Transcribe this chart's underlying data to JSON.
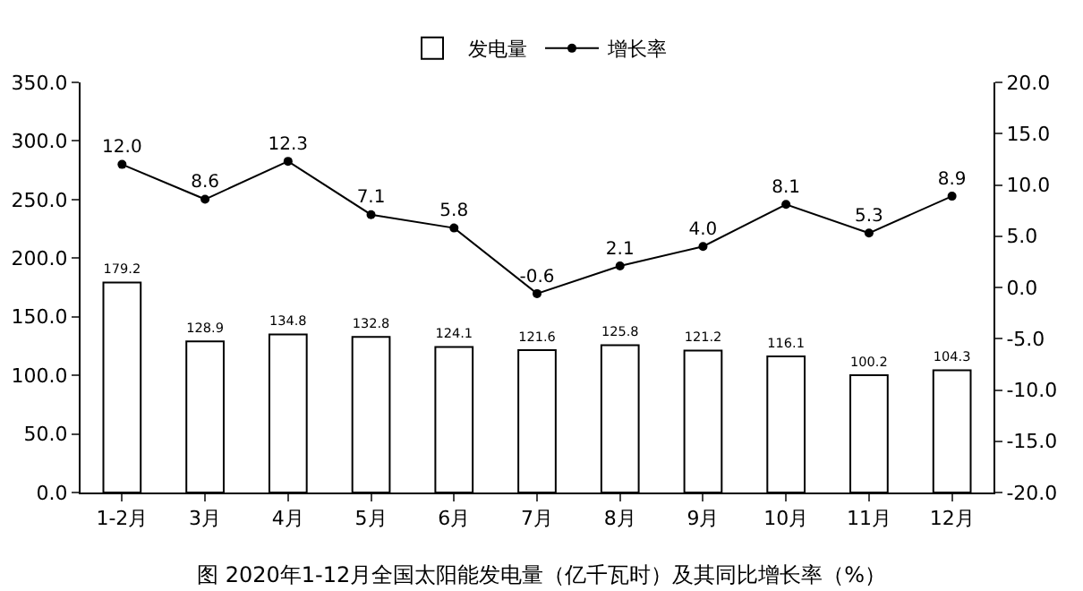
{
  "chart_data": {
    "type": "bar",
    "title": "图 2020年1-12月全国太阳能发电量（亿千瓦时）及其同比增长率（%）",
    "categories": [
      "1-2月",
      "3月",
      "4月",
      "5月",
      "6月",
      "7月",
      "8月",
      "9月",
      "10月",
      "11月",
      "12月"
    ],
    "series": [
      {
        "name": "发电量",
        "color": "#ffffff",
        "values": [
          179.2,
          128.9,
          134.8,
          132.8,
          124.1,
          121.6,
          125.8,
          121.2,
          116.1,
          100.2,
          104.3
        ],
        "value_labels": [
          "179.2",
          "128.9",
          "134.8",
          "132.8",
          "124.1",
          "121.6",
          "125.8",
          "121.2",
          "116.1",
          "100.2",
          "104.3"
        ]
      },
      {
        "name": "增长率",
        "type": "line",
        "axis": "y2",
        "color": "#000000",
        "marker": "circle",
        "line_style": "solid",
        "values": [
          12.0,
          8.6,
          12.3,
          7.1,
          5.8,
          -0.6,
          2.1,
          4.0,
          8.1,
          5.3,
          8.9
        ],
        "value_labels": [
          "12.0",
          "8.6",
          "12.3",
          "7.1",
          "5.8",
          "-0.6",
          "2.1",
          "4.0",
          "8.1",
          "5.3",
          "8.9"
        ]
      }
    ],
    "ylim": [
      0,
      350
    ],
    "yticks": [
      {
        "value": 0,
        "label": "0.0"
      },
      {
        "value": 50,
        "label": "50.0"
      },
      {
        "value": 100,
        "label": "100.0"
      },
      {
        "value": 150,
        "label": "150.0"
      },
      {
        "value": 200,
        "label": "200.0"
      },
      {
        "value": 250,
        "label": "250.0"
      },
      {
        "value": 300,
        "label": "300.0"
      },
      {
        "value": 350,
        "label": "350.0"
      }
    ],
    "y2lim": [
      -20,
      20
    ],
    "y2ticks": [
      {
        "value": -20,
        "label": "-20.0"
      },
      {
        "value": -15,
        "label": "-15.0"
      },
      {
        "value": -10,
        "label": "-10.0"
      },
      {
        "value": -5,
        "label": "-5.0"
      },
      {
        "value": 0,
        "label": "0.0"
      },
      {
        "value": 5,
        "label": "5.0"
      },
      {
        "value": 10,
        "label": "10.0"
      },
      {
        "value": 15,
        "label": "15.0"
      },
      {
        "value": 20,
        "label": "20.0"
      }
    ],
    "grid": false,
    "legend": "top"
  }
}
